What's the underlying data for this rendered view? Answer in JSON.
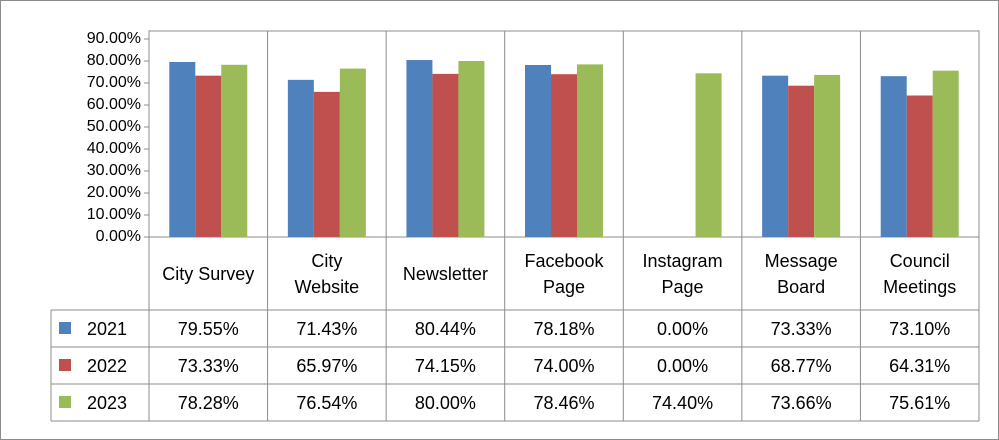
{
  "chart_data": {
    "type": "bar",
    "categories": [
      "City Survey",
      "City Website",
      "Newsletter",
      "Facebook Page",
      "Instagram Page",
      "Message Board",
      "Council Meetings"
    ],
    "series": [
      {
        "name": "2021",
        "color": "#4f81bd",
        "values": [
          79.55,
          71.43,
          80.44,
          78.18,
          0,
          73.33,
          73.1
        ],
        "value_labels": [
          "79.55%",
          "71.43%",
          "80.44%",
          "78.18%",
          "0.00%",
          "73.33%",
          "73.10%"
        ]
      },
      {
        "name": "2022",
        "color": "#c0504d",
        "values": [
          73.33,
          65.97,
          74.15,
          74.0,
          0,
          68.77,
          64.31
        ],
        "value_labels": [
          "73.33%",
          "65.97%",
          "74.15%",
          "74.00%",
          "0.00%",
          "68.77%",
          "64.31%"
        ]
      },
      {
        "name": "2023",
        "color": "#9bbb59",
        "values": [
          78.28,
          76.54,
          80.0,
          78.46,
          74.4,
          73.66,
          75.61
        ],
        "value_labels": [
          "78.28%",
          "76.54%",
          "80.00%",
          "78.46%",
          "74.40%",
          "73.66%",
          "75.61%"
        ]
      }
    ],
    "ylim": [
      0,
      90
    ],
    "yticks": [
      {
        "value": 0,
        "label": "0.00%"
      },
      {
        "value": 10,
        "label": "10.00%"
      },
      {
        "value": 20,
        "label": "20.00%"
      },
      {
        "value": 30,
        "label": "30.00%"
      },
      {
        "value": 40,
        "label": "40.00%"
      },
      {
        "value": 50,
        "label": "50.00%"
      },
      {
        "value": 60,
        "label": "60.00%"
      },
      {
        "value": 70,
        "label": "70.00%"
      },
      {
        "value": 80,
        "label": "80.00%"
      },
      {
        "value": 90,
        "label": "90.00%"
      }
    ],
    "grid": false
  }
}
